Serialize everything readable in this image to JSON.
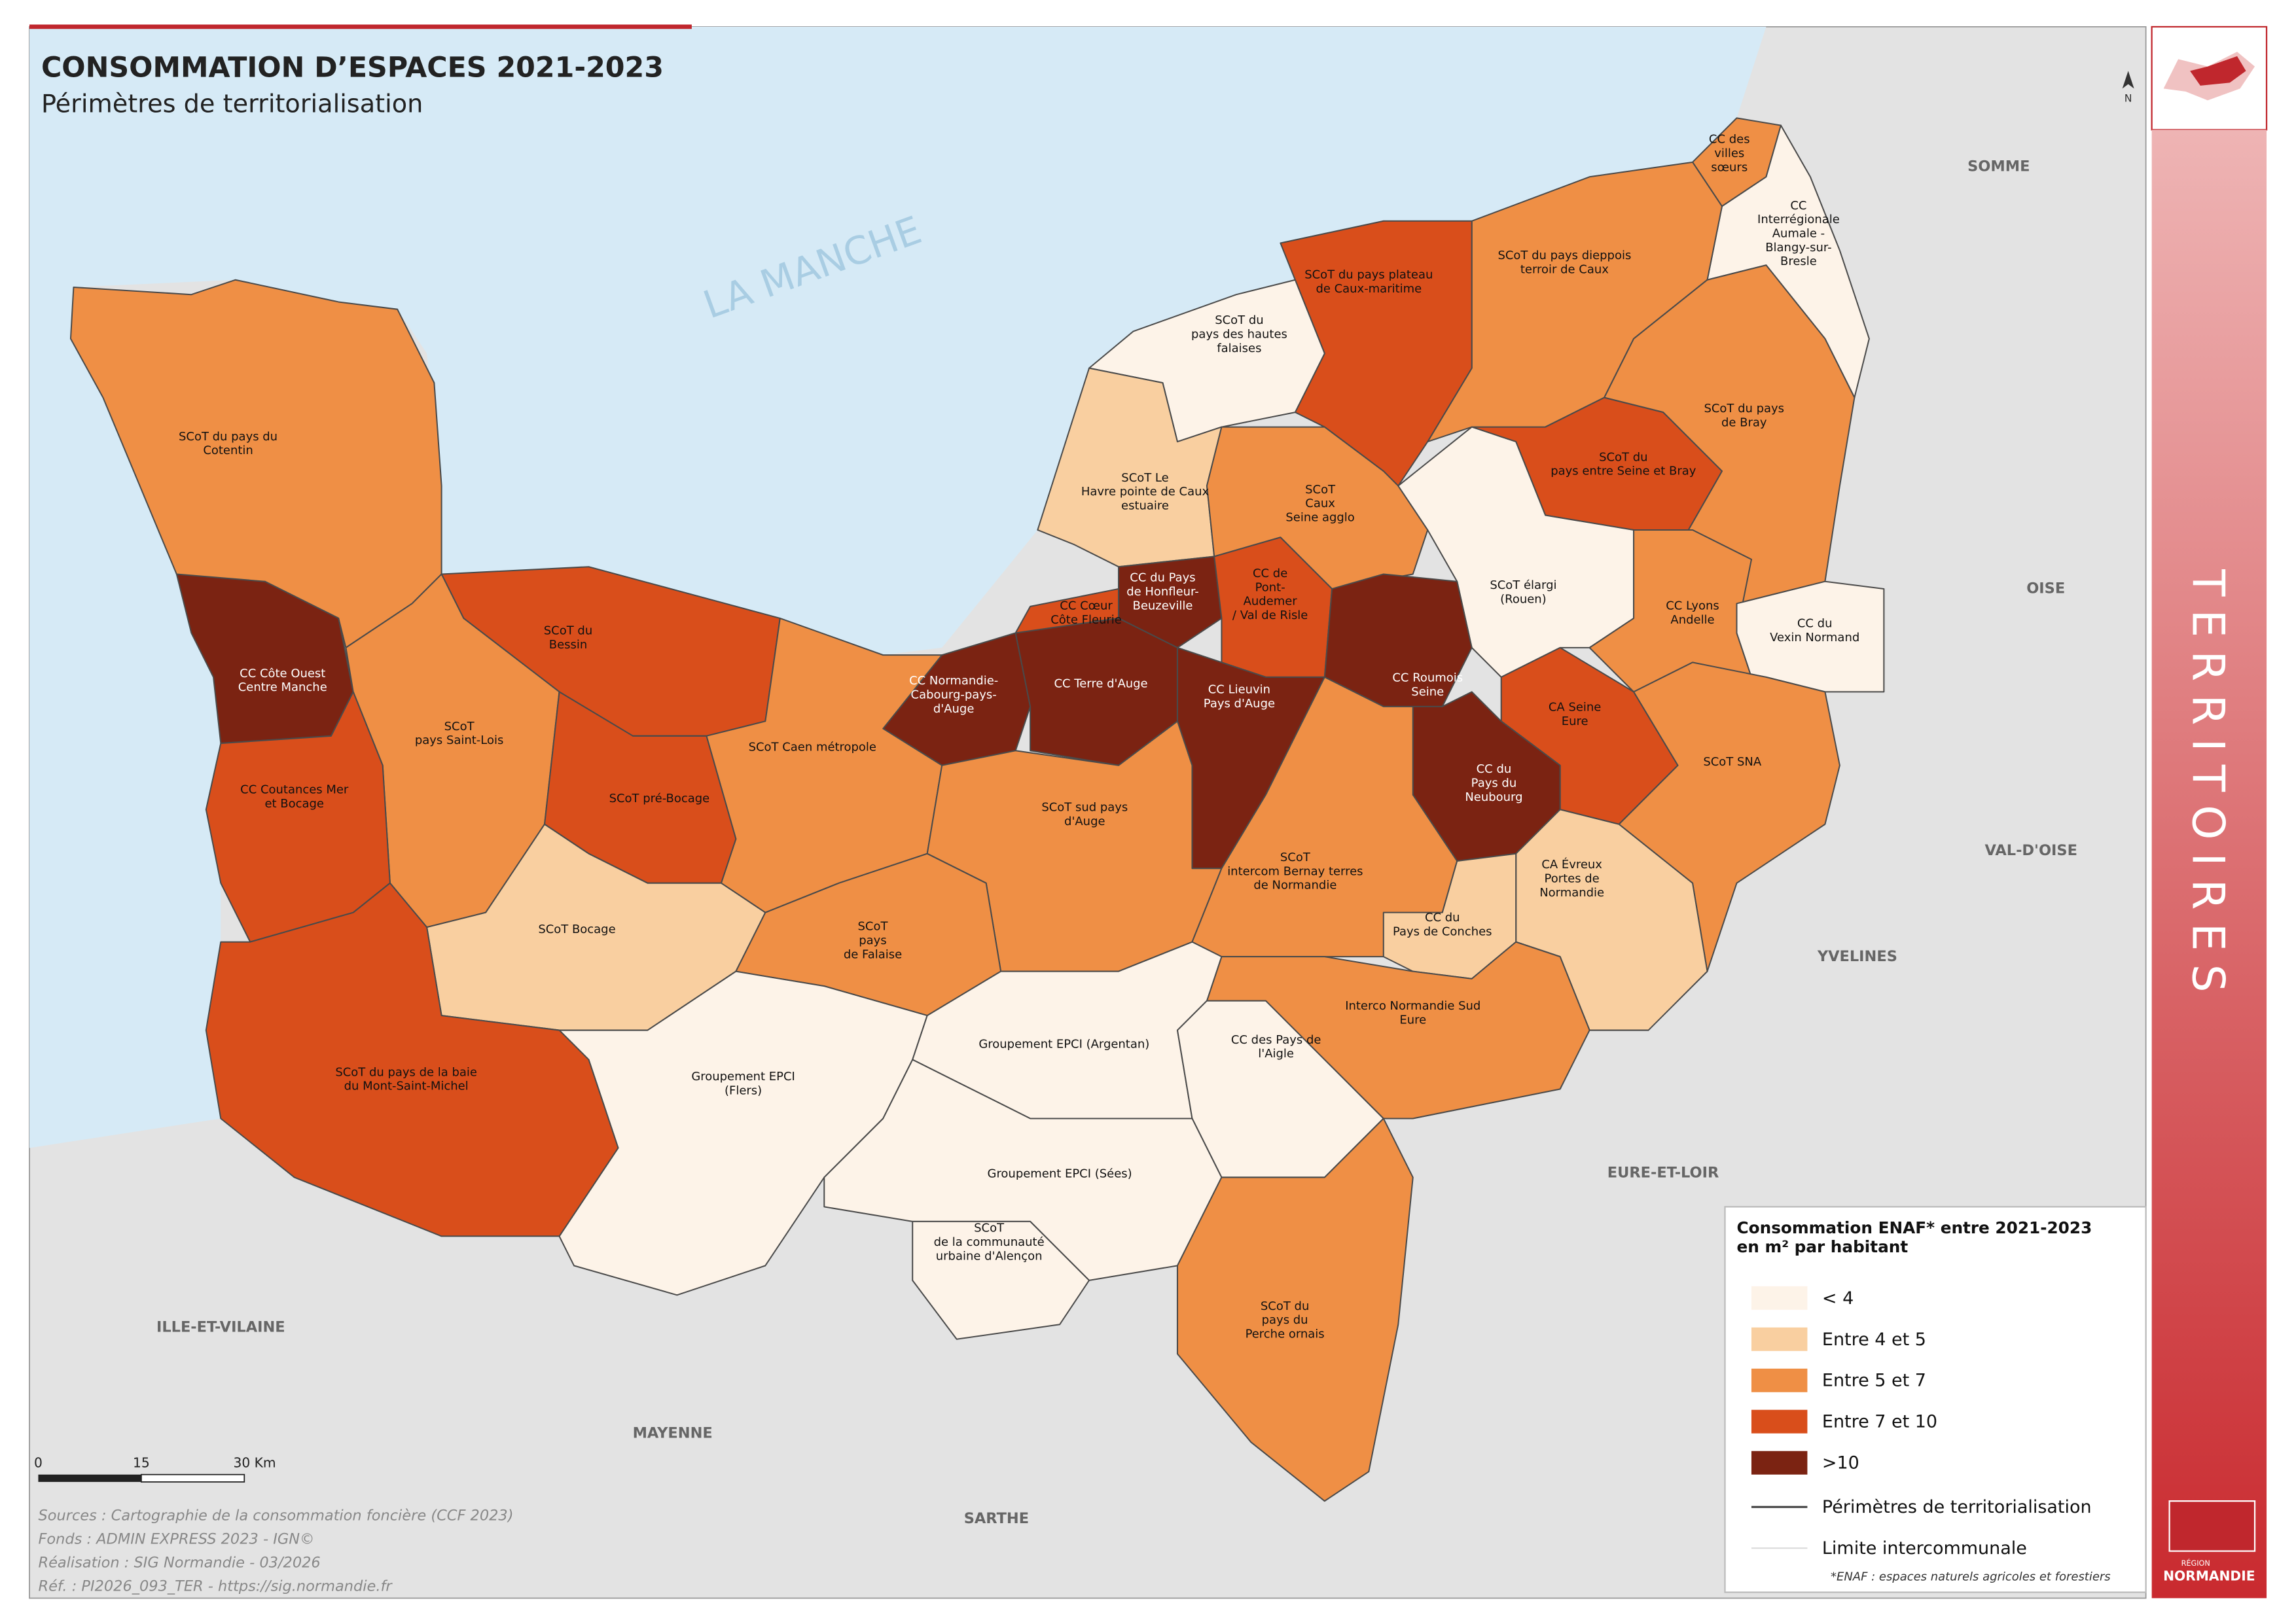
{
  "header": {
    "title": "CONSOMMATION D’ESPACES 2021-2023",
    "subtitle": "Périmètres de territorialisation"
  },
  "sea_label": "LA MANCHE",
  "north": "N",
  "side_label": "TERRITOIRES",
  "logo": {
    "small": "RÉGION",
    "big": "NORMANDIE"
  },
  "neighbors": [
    "SOMME",
    "OISE",
    "VAL-D'OISE",
    "YVELINES",
    "EURE-ET-LOIR",
    "ILLE-ET-VILAINE",
    "MAYENNE",
    "SARTHE"
  ],
  "territories": [
    {
      "label": [
        "CC des",
        "villes",
        "sœurs"
      ],
      "class": 2
    },
    {
      "label": [
        "CC",
        "Interrégionale",
        "Aumale -",
        "Blangy-sur-",
        "Bresle"
      ],
      "class": 0
    },
    {
      "label": [
        "SCoT du pays dieppois",
        "terroir de Caux"
      ],
      "class": 2
    },
    {
      "label": [
        "SCoT du pays plateau",
        "de Caux-maritime"
      ],
      "class": 3
    },
    {
      "label": [
        "SCoT du",
        "pays des hautes",
        "falaises"
      ],
      "class": 0
    },
    {
      "label": [
        "SCoT du pays",
        "de Bray"
      ],
      "class": 2
    },
    {
      "label": [
        "SCoT du",
        "pays entre Seine et Bray"
      ],
      "class": 3
    },
    {
      "label": [
        "SCoT Le",
        "Havre pointe de Caux",
        "estuaire"
      ],
      "class": 1
    },
    {
      "label": [
        "SCoT",
        "Caux",
        "Seine agglo"
      ],
      "class": 2
    },
    {
      "label": [
        "SCoT du pays du",
        "Cotentin"
      ],
      "class": 2
    },
    {
      "label": [
        "SCoT élargi",
        "(Rouen)"
      ],
      "class": 0
    },
    {
      "label": [
        "CC Lyons",
        "Andelle"
      ],
      "class": 2
    },
    {
      "label": [
        "CC du",
        "Vexin Normand"
      ],
      "class": 0
    },
    {
      "label": [
        "CC Côte Ouest",
        "Centre Manche"
      ],
      "class": 4
    },
    {
      "label": [
        "SCoT du",
        "Bessin"
      ],
      "class": 3
    },
    {
      "label": [
        "CC Cœur",
        "Côte Fleurie"
      ],
      "class": 3
    },
    {
      "label": [
        "CC du Pays",
        "de Honfleur-",
        "Beuzeville"
      ],
      "class": 4
    },
    {
      "label": [
        "CC de",
        "Pont-",
        "Audemer",
        "/ Val de Risle"
      ],
      "class": 3
    },
    {
      "label": [
        "CC Roumois",
        "Seine"
      ],
      "class": 4
    },
    {
      "label": [
        "CA Seine",
        "Eure"
      ],
      "class": 3
    },
    {
      "label": [
        "CC Normandie-",
        "Cabourg-pays-",
        "d'Auge"
      ],
      "class": 4
    },
    {
      "label": [
        "CC Terre d'Auge"
      ],
      "class": 4
    },
    {
      "label": [
        "CC Lieuvin",
        "Pays d'Auge"
      ],
      "class": 4
    },
    {
      "label": [
        "SCoT",
        "pays Saint-Lois"
      ],
      "class": 2
    },
    {
      "label": [
        "SCoT Caen métropole"
      ],
      "class": 2
    },
    {
      "label": [
        "SCoT SNA"
      ],
      "class": 2
    },
    {
      "label": [
        "CC du",
        "Pays du",
        "Neubourg"
      ],
      "class": 4
    },
    {
      "label": [
        "CC Coutances Mer",
        "et Bocage"
      ],
      "class": 3
    },
    {
      "label": [
        "SCoT pré-Bocage"
      ],
      "class": 3
    },
    {
      "label": [
        "SCoT sud pays",
        "d'Auge"
      ],
      "class": 2
    },
    {
      "label": [
        "SCoT",
        "intercom Bernay terres",
        "de Normandie"
      ],
      "class": 2
    },
    {
      "label": [
        "CA Évreux",
        "Portes de",
        "Normandie"
      ],
      "class": 1
    },
    {
      "label": [
        "CC du",
        "Pays de Conches"
      ],
      "class": 1
    },
    {
      "label": [
        "SCoT Bocage"
      ],
      "class": 1
    },
    {
      "label": [
        "SCoT",
        "pays",
        "de Falaise"
      ],
      "class": 2
    },
    {
      "label": [
        "Interco Normandie Sud",
        "Eure"
      ],
      "class": 2
    },
    {
      "label": [
        "Groupement EPCI",
        "(Flers)"
      ],
      "class": 0
    },
    {
      "label": [
        "Groupement EPCI (Argentan)"
      ],
      "class": 0
    },
    {
      "label": [
        "CC des Pays de",
        "l'Aigle"
      ],
      "class": 0
    },
    {
      "label": [
        "SCoT du pays de la baie",
        "du Mont-Saint-Michel"
      ],
      "class": 3
    },
    {
      "label": [
        "Groupement EPCI (Sées)"
      ],
      "class": 0
    },
    {
      "label": [
        "SCoT",
        "de la communauté",
        "urbaine d'Alençon"
      ],
      "class": 0
    },
    {
      "label": [
        "SCoT du",
        "pays du",
        "Perche ornais"
      ],
      "class": 2
    }
  ],
  "legend": {
    "title": [
      "Consommation  ENAF* entre 2021-2023",
      "en m² par habitant"
    ],
    "classes": [
      {
        "label": "< 4",
        "color": "#fdf3e8"
      },
      {
        "label": "Entre 4 et 5",
        "color": "#f9cfa0"
      },
      {
        "label": "Entre 5 et 7",
        "color": "#ef8f45"
      },
      {
        "label": "Entre 7 et 10",
        "color": "#d94e1b"
      },
      {
        "label": ">10",
        "color": "#7b2312"
      }
    ],
    "lines": [
      "Périmètres de territorialisation",
      "Limite intercommunale"
    ],
    "note": "*ENAF : espaces naturels agricoles et forestiers"
  },
  "scale": [
    "0",
    "15",
    "30 Km"
  ],
  "sources": [
    "Sources : Cartographie de la consommation foncière (CCF 2023)",
    "Fonds : ADMIN EXPRESS 2023 - IGN©",
    "Réalisation : SIG Normandie - 03/2026",
    "Réf. : PI2026_093_TER - https://sig.normandie.fr"
  ]
}
